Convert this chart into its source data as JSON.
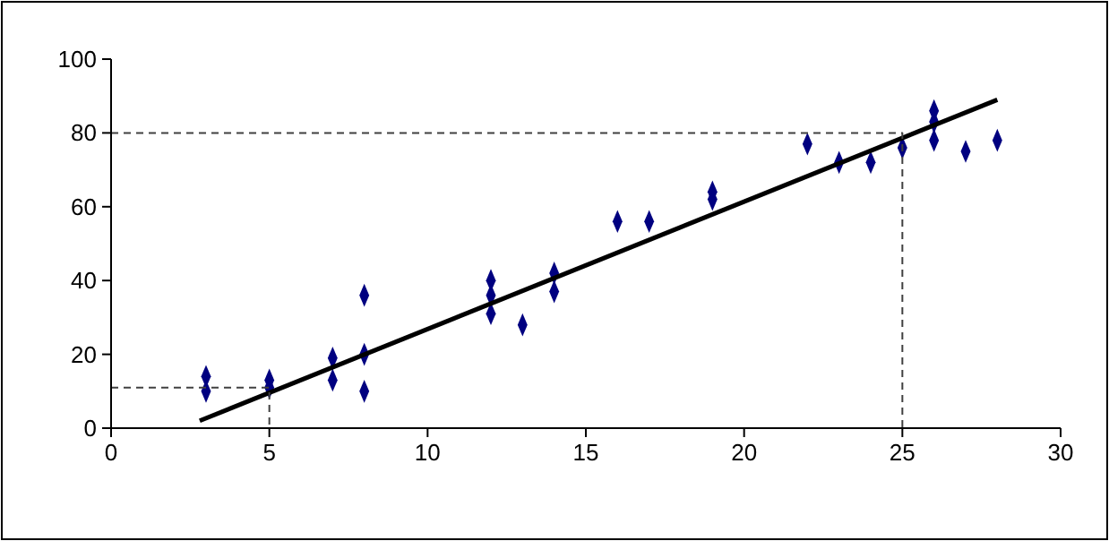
{
  "chart_data": {
    "type": "scatter",
    "xlim": [
      0,
      30
    ],
    "ylim": [
      0,
      100
    ],
    "xticks": [
      0,
      5,
      10,
      15,
      20,
      25,
      30
    ],
    "yticks": [
      0,
      20,
      40,
      60,
      80,
      100
    ],
    "grid": false,
    "marker": "diamond",
    "series": [
      {
        "color": "#000080",
        "x": [
          3,
          3,
          5,
          5,
          7,
          7,
          8,
          8,
          8,
          12,
          12,
          12,
          13,
          14,
          14,
          16,
          17,
          19,
          19,
          22,
          23,
          24,
          25,
          26,
          26,
          26,
          27,
          28
        ],
        "values": [
          14,
          10,
          13,
          11,
          19,
          13,
          36,
          20,
          10,
          40,
          36,
          31,
          28,
          42,
          37,
          56,
          56,
          64,
          62,
          77,
          72,
          72,
          76,
          86,
          83,
          78,
          75,
          78
        ]
      },
      {
        "type": "line",
        "color": "#000000",
        "line_style": "solid",
        "marker": "none",
        "x": [
          2.8,
          28
        ],
        "values": [
          2,
          89
        ]
      },
      {
        "type": "line",
        "color": "#404040",
        "line_style": "dashed",
        "marker": "none",
        "x": [
          0,
          5,
          5
        ],
        "values": [
          11,
          11,
          0
        ]
      },
      {
        "type": "line",
        "color": "#404040",
        "line_style": "dashed",
        "marker": "none",
        "x": [
          0,
          25,
          25
        ],
        "values": [
          80,
          80,
          0
        ]
      }
    ]
  }
}
